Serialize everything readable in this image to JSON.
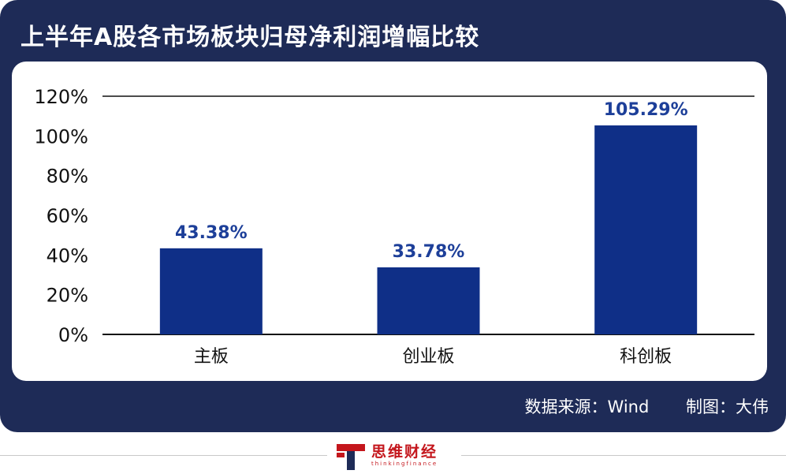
{
  "header": {
    "title": "上半年A股各市场板块归母净利润增幅比较"
  },
  "footer": {
    "source": "数据来源：Wind",
    "author": "制图：大伟",
    "logo_cn": "思维财经",
    "logo_en": "thinkingfinance"
  },
  "colors": {
    "bar": "#0f2f87",
    "frame": "#1e2b57",
    "label": "#1d3f99",
    "brand_red": "#c4161c"
  },
  "chart_data": {
    "type": "bar",
    "title": "上半年A股各市场板块归母净利润增幅比较",
    "categories": [
      "主板",
      "创业板",
      "科创板"
    ],
    "values": [
      43.38,
      33.78,
      105.29
    ],
    "value_labels": [
      "43.38%",
      "33.78%",
      "105.29%"
    ],
    "yticks": [
      "0%",
      "20%",
      "40%",
      "60%",
      "80%",
      "100%",
      "120%"
    ],
    "ylim": [
      0,
      120
    ],
    "xlabel": "",
    "ylabel": "",
    "grid": false
  }
}
